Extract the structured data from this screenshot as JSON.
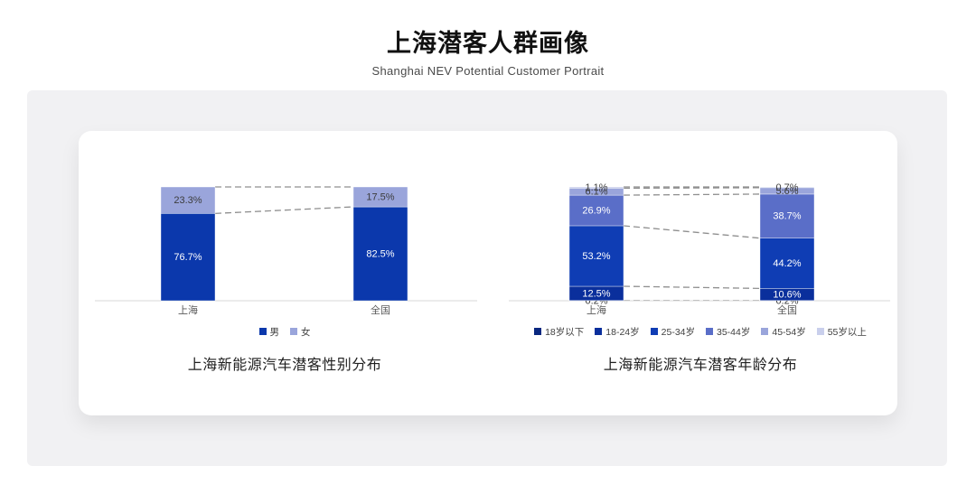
{
  "header": {
    "title": "上海潜客人群画像",
    "subtitle": "Shanghai NEV Potential Customer Portrait"
  },
  "colors": {
    "panel_bg": "#f1f1f3",
    "card_bg": "#ffffff",
    "axis": "#d9d9d9",
    "dash_line": "#8f8f8f",
    "category_label": "#595959",
    "legend_text": "#404040"
  },
  "chart_data": [
    {
      "type": "bar",
      "stacked": true,
      "title": "上海新能源汽车潜客性别分布",
      "categories": [
        "上海",
        "全国"
      ],
      "value_suffix": "%",
      "ylim": [
        0,
        100
      ],
      "legend_position": "bottom",
      "grid": false,
      "series": [
        {
          "name": "男",
          "values": [
            76.7,
            82.5
          ],
          "color": "#0b38ac",
          "label_color": "#ffffff"
        },
        {
          "name": "女",
          "values": [
            23.3,
            17.5
          ],
          "color": "#9aa5db",
          "label_color": "#3c3c3c"
        }
      ]
    },
    {
      "type": "bar",
      "stacked": true,
      "title": "上海新能源汽车潜客年龄分布",
      "categories": [
        "上海",
        "全国"
      ],
      "value_suffix": "%",
      "ylim": [
        0,
        100
      ],
      "legend_position": "bottom",
      "grid": false,
      "series": [
        {
          "name": "18岁以下",
          "values": [
            0.2,
            0.2
          ],
          "color": "#09277f",
          "label_color": "#3c3c3c"
        },
        {
          "name": "18-24岁",
          "values": [
            12.5,
            10.6
          ],
          "color": "#0a2f9c",
          "label_color": "#ffffff"
        },
        {
          "name": "25-34岁",
          "values": [
            53.2,
            44.2
          ],
          "color": "#0f3db4",
          "label_color": "#ffffff"
        },
        {
          "name": "35-44岁",
          "values": [
            26.9,
            38.7
          ],
          "color": "#5a6ec8",
          "label_color": "#ffffff"
        },
        {
          "name": "45-54岁",
          "values": [
            6.1,
            5.6
          ],
          "color": "#9aa5db",
          "label_color": "#3c3c3c"
        },
        {
          "name": "55岁以上",
          "values": [
            1.1,
            0.7
          ],
          "color": "#c9cfec",
          "label_color": "#3c3c3c"
        }
      ]
    }
  ]
}
